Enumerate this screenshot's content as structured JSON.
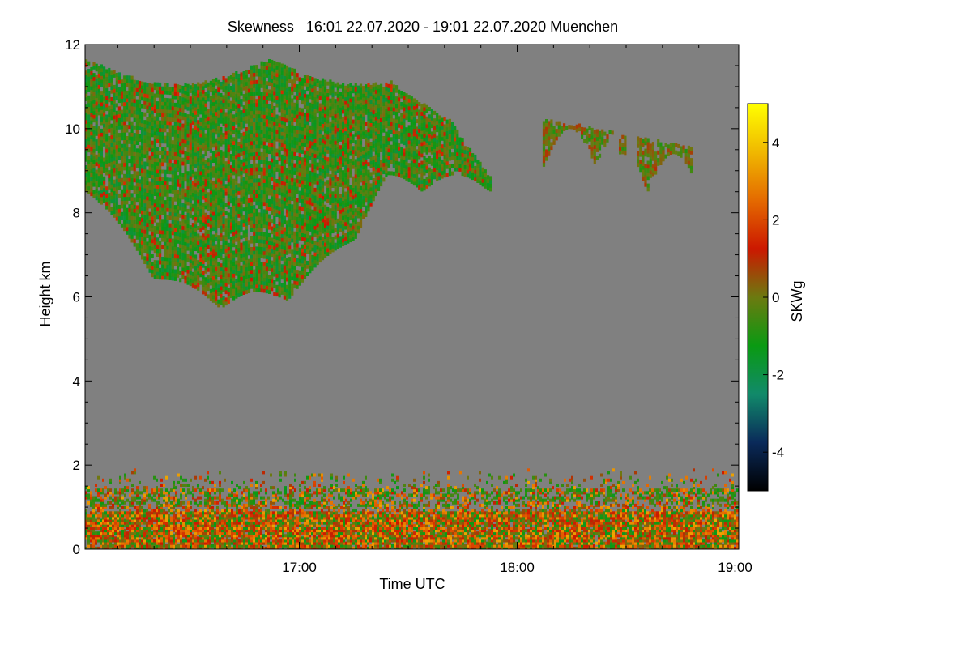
{
  "chart_data": {
    "type": "heatmap",
    "title": "Skewness   16:01 22.07.2020 - 19:01 22.07.2020 Muenchen",
    "xlabel": "Time UTC",
    "ylabel": "Height km",
    "xlim": [
      "16:01",
      "19:01"
    ],
    "ylim": [
      0,
      12
    ],
    "x_ticks": [
      {
        "label": "17:00",
        "minutes": 59
      },
      {
        "label": "18:00",
        "minutes": 119
      },
      {
        "label": "19:00",
        "minutes": 179
      }
    ],
    "x_total_minutes": 180,
    "y_ticks": [
      {
        "label": "0",
        "value": 0
      },
      {
        "label": "2",
        "value": 2
      },
      {
        "label": "4",
        "value": 4
      },
      {
        "label": "6",
        "value": 6
      },
      {
        "label": "8",
        "value": 8
      },
      {
        "label": "10",
        "value": 10
      },
      {
        "label": "12",
        "value": 12
      }
    ],
    "background_color": "#808080",
    "colorbar": {
      "label": "SKWg",
      "range": [
        -5,
        5
      ],
      "ticks": [
        {
          "label": "4",
          "value": 4
        },
        {
          "label": "2",
          "value": 2
        },
        {
          "label": "0",
          "value": 0
        },
        {
          "label": "-2",
          "value": -2
        },
        {
          "label": "-4",
          "value": -4
        }
      ],
      "colors": [
        "#000000",
        "#0a2a5a",
        "#118a6a",
        "#0a9a12",
        "#6c7a10",
        "#cc1800",
        "#e46a00",
        "#f0b800",
        "#ffff00"
      ]
    },
    "regions": [
      {
        "name": "upper cloud",
        "time_range": [
          "16:01",
          "17:53"
        ],
        "height_range_km": [
          5.7,
          11.6
        ],
        "typical_skewness": -0.8
      },
      {
        "name": "detached cloud",
        "time_range": [
          "18:07",
          "18:48"
        ],
        "height_range_km": [
          8.5,
          10.2
        ],
        "typical_skewness": 0.0
      },
      {
        "name": "boundary layer",
        "time_range": [
          "16:01",
          "19:01"
        ],
        "height_range_km": [
          0,
          1.9
        ],
        "typical_skewness": 1.0
      }
    ]
  }
}
